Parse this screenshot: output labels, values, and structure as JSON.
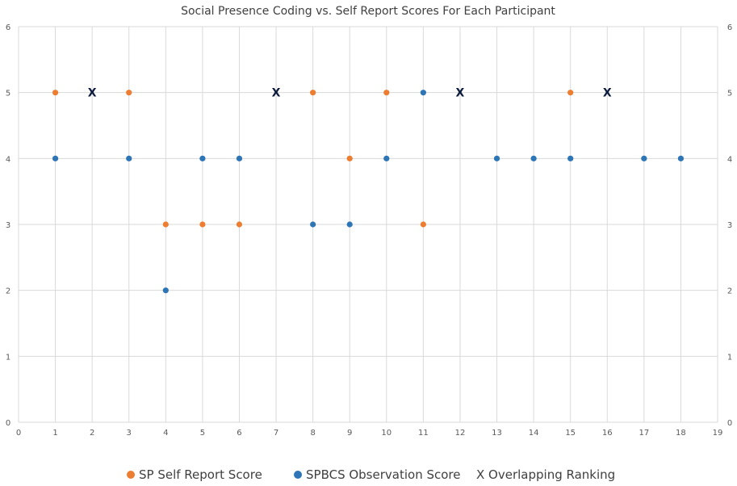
{
  "chart_data": {
    "type": "scatter",
    "title": "Social Presence Coding vs. Self Report Scores For Each Participant",
    "xlabel": "",
    "ylabel": "",
    "xlim": [
      0,
      19
    ],
    "ylim": [
      0,
      6
    ],
    "x_ticks": [
      0,
      1,
      2,
      3,
      4,
      5,
      6,
      7,
      8,
      9,
      10,
      11,
      12,
      13,
      14,
      15,
      16,
      17,
      18,
      19
    ],
    "y_ticks": [
      0,
      1,
      2,
      3,
      4,
      5,
      6
    ],
    "grid": true,
    "secondary_y_axis": true,
    "legend_position": "bottom",
    "series": [
      {
        "name": "SP Self Report Score",
        "marker": "circle",
        "color": "#ED7D31",
        "points": [
          {
            "x": 1,
            "y": 5
          },
          {
            "x": 3,
            "y": 5
          },
          {
            "x": 4,
            "y": 3
          },
          {
            "x": 5,
            "y": 3
          },
          {
            "x": 6,
            "y": 3
          },
          {
            "x": 8,
            "y": 5
          },
          {
            "x": 9,
            "y": 4
          },
          {
            "x": 10,
            "y": 5
          },
          {
            "x": 11,
            "y": 3
          },
          {
            "x": 15,
            "y": 5
          }
        ]
      },
      {
        "name": "SPBCS Observation Score",
        "marker": "circle",
        "color": "#2E75B6",
        "points": [
          {
            "x": 1,
            "y": 4
          },
          {
            "x": 3,
            "y": 4
          },
          {
            "x": 4,
            "y": 2
          },
          {
            "x": 5,
            "y": 4
          },
          {
            "x": 6,
            "y": 4
          },
          {
            "x": 8,
            "y": 3
          },
          {
            "x": 9,
            "y": 3
          },
          {
            "x": 10,
            "y": 4
          },
          {
            "x": 11,
            "y": 5
          },
          {
            "x": 13,
            "y": 4
          },
          {
            "x": 14,
            "y": 4
          },
          {
            "x": 15,
            "y": 4
          },
          {
            "x": 17,
            "y": 4
          },
          {
            "x": 18,
            "y": 4
          }
        ]
      },
      {
        "name": "Overlapping Ranking",
        "marker": "X",
        "color": "#0D1B3D",
        "points": [
          {
            "x": 2,
            "y": 5
          },
          {
            "x": 7,
            "y": 5
          },
          {
            "x": 12,
            "y": 5
          },
          {
            "x": 16,
            "y": 5
          }
        ]
      }
    ],
    "legend": [
      {
        "label": "SP Self Report Score",
        "symbol": "dot",
        "color": "#ED7D31"
      },
      {
        "label": "SPBCS Observation Score",
        "symbol": "dot",
        "color": "#2E75B6"
      },
      {
        "label": "Overlapping Ranking",
        "symbol": "X",
        "color": "#404040"
      }
    ]
  }
}
